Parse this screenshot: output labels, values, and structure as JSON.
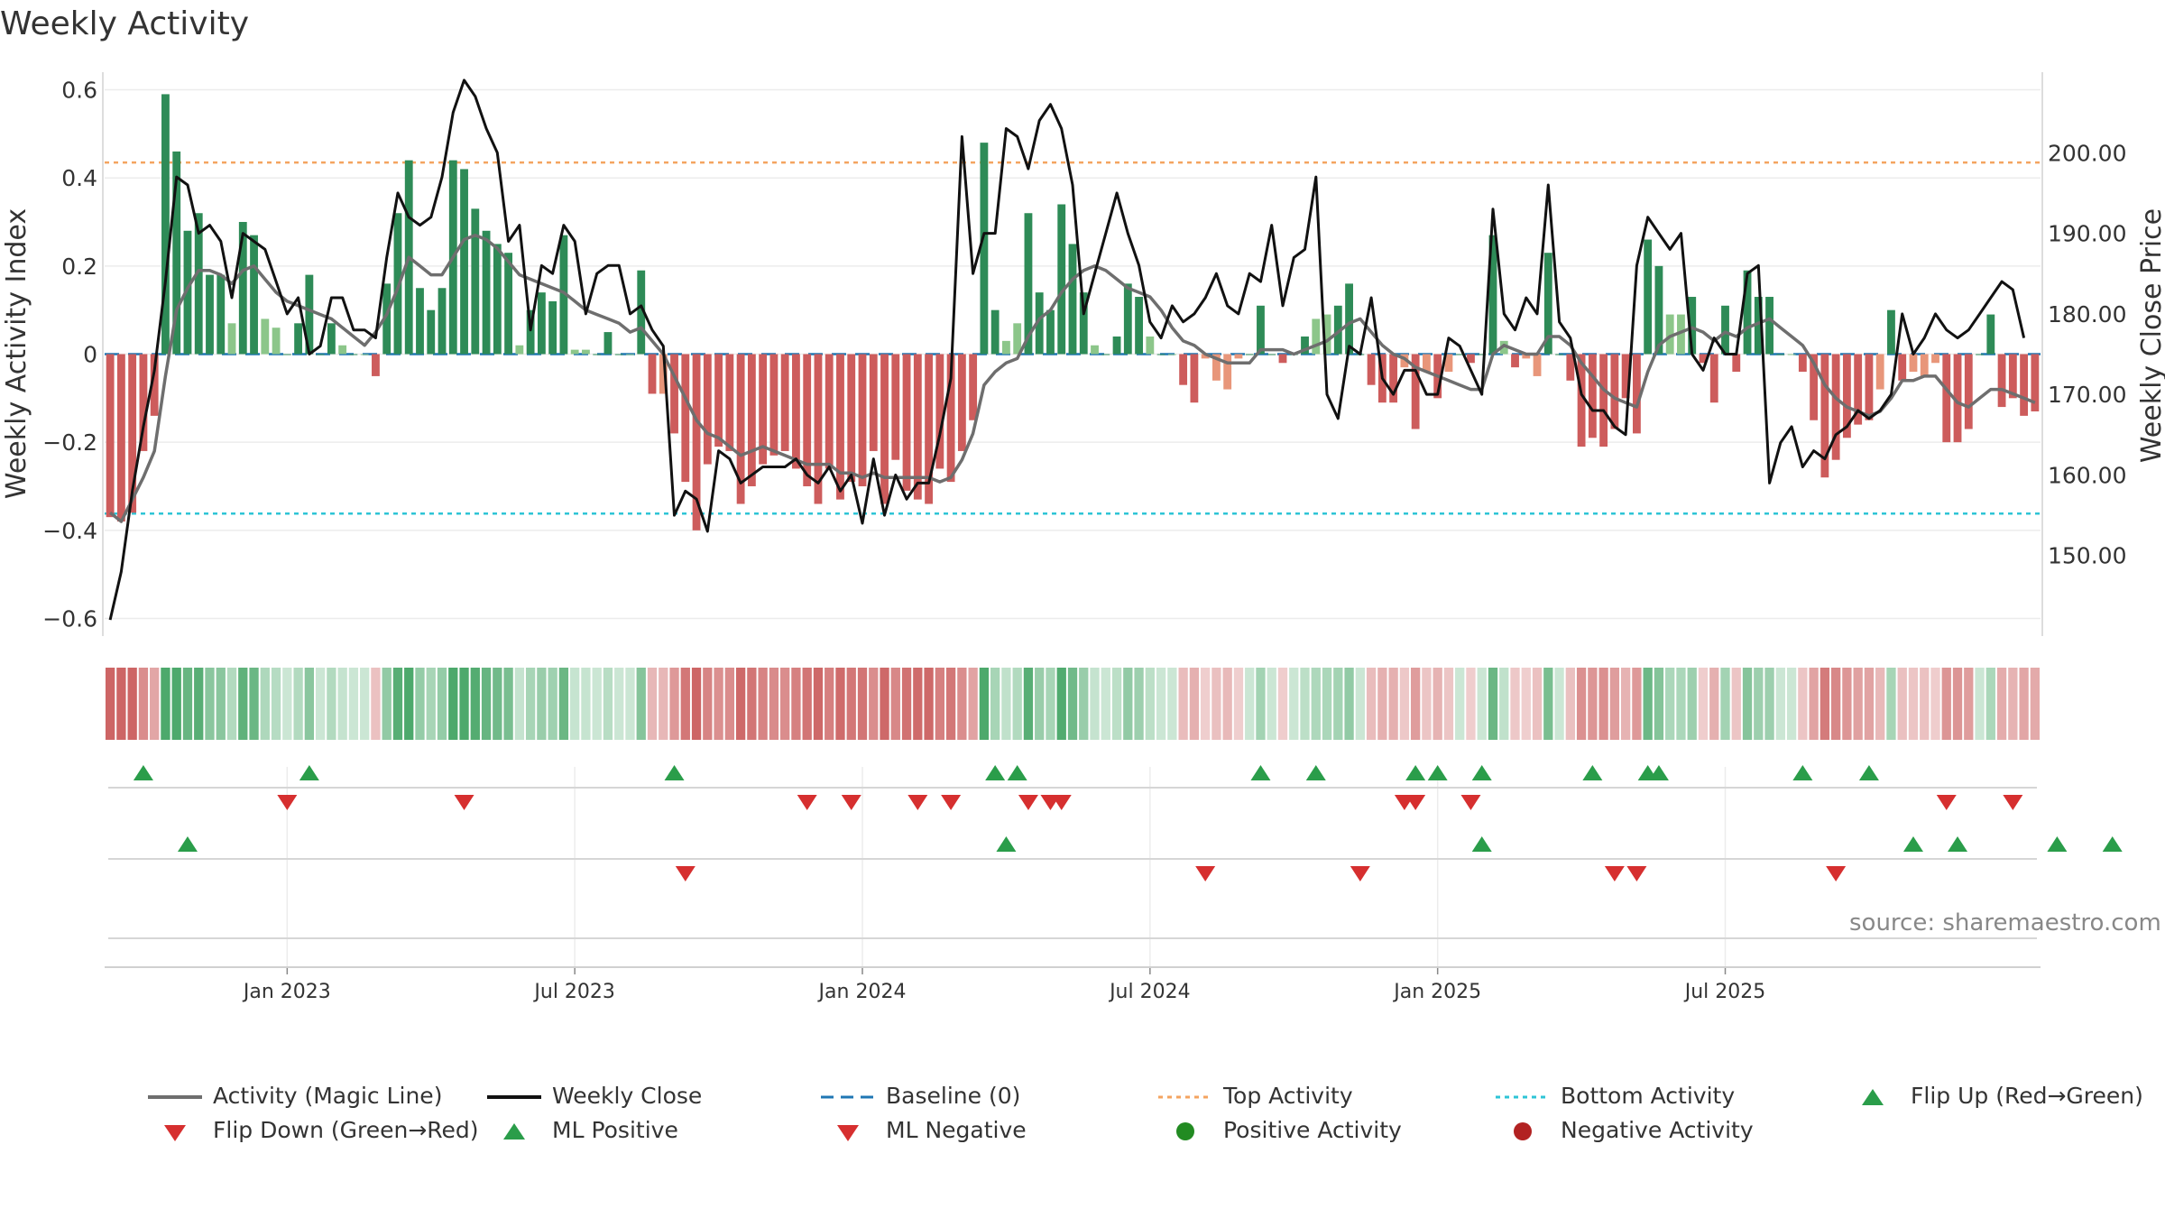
{
  "chart_data": {
    "type": "bar+line",
    "title": "Weekly Activity",
    "ylabel_left": "Weekly Activity Index",
    "ylabel_right": "Weekly Close Price",
    "ylim_left": [
      -0.64,
      0.64
    ],
    "ylim_right": [
      140,
      210
    ],
    "y_ticks_left": [
      {
        "v": 0.6,
        "label": "0.6"
      },
      {
        "v": 0.4,
        "label": "0.4"
      },
      {
        "v": 0.2,
        "label": "0.2"
      },
      {
        "v": 0,
        "label": "0"
      },
      {
        "v": -0.2,
        "label": "−0.2"
      },
      {
        "v": -0.4,
        "label": "−0.4"
      },
      {
        "v": -0.6,
        "label": "−0.6"
      }
    ],
    "y_ticks_right": [
      {
        "v": 200,
        "label": "200.00"
      },
      {
        "v": 190,
        "label": "190.00"
      },
      {
        "v": 180,
        "label": "180.00"
      },
      {
        "v": 170,
        "label": "170.00"
      },
      {
        "v": 160,
        "label": "160.00"
      },
      {
        "v": 150,
        "label": "150.00"
      }
    ],
    "x_ticks": [
      {
        "week": 16,
        "label": "Jan 2023"
      },
      {
        "week": 42,
        "label": "Jul 2023"
      },
      {
        "week": 68,
        "label": "Jan 2024"
      },
      {
        "week": 94,
        "label": "Jul 2024"
      },
      {
        "week": 120,
        "label": "Jan 2025"
      },
      {
        "week": 146,
        "label": "Jul 2025"
      }
    ],
    "top_activity": 0.435,
    "bottom_activity": -0.362,
    "baseline": 0,
    "activity": [
      -0.37,
      -0.38,
      -0.36,
      -0.22,
      -0.14,
      0.59,
      0.46,
      0.28,
      0.32,
      0.18,
      0.18,
      0.07,
      0.3,
      0.27,
      0.08,
      0.06,
      0.0,
      0.07,
      0.18,
      0.0,
      0.07,
      0.02,
      0.0,
      0.0,
      -0.05,
      0.16,
      0.32,
      0.44,
      0.15,
      0.1,
      0.15,
      0.44,
      0.42,
      0.33,
      0.28,
      0.25,
      0.23,
      0.02,
      0.1,
      0.14,
      0.12,
      0.27,
      0.01,
      0.01,
      0.0,
      0.05,
      0.0,
      0.0,
      0.19,
      -0.09,
      -0.09,
      -0.18,
      -0.29,
      -0.4,
      -0.25,
      -0.21,
      -0.22,
      -0.34,
      -0.3,
      -0.25,
      -0.23,
      -0.22,
      -0.26,
      -0.3,
      -0.34,
      -0.26,
      -0.33,
      -0.29,
      -0.3,
      -0.22,
      -0.34,
      -0.24,
      -0.31,
      -0.33,
      -0.34,
      -0.26,
      -0.29,
      -0.22,
      -0.15,
      0.48,
      0.1,
      0.03,
      0.07,
      0.32,
      0.14,
      0.1,
      0.34,
      0.25,
      0.14,
      0.02,
      0.0,
      0.04,
      0.16,
      0.13,
      0.04,
      0.0,
      0.0,
      -0.07,
      -0.11,
      -0.01,
      -0.06,
      -0.08,
      -0.01,
      0.0,
      0.11,
      0.0,
      -0.02,
      0.0,
      0.04,
      0.08,
      0.09,
      0.11,
      0.16,
      0.0,
      -0.07,
      -0.11,
      -0.11,
      -0.03,
      -0.17,
      -0.04,
      -0.1,
      -0.04,
      0.0,
      -0.02,
      0.0,
      0.27,
      0.03,
      -0.03,
      -0.01,
      -0.05,
      0.23,
      0.0,
      -0.06,
      -0.21,
      -0.19,
      -0.21,
      -0.17,
      -0.1,
      -0.18,
      0.26,
      0.2,
      0.09,
      0.09,
      0.13,
      -0.02,
      -0.11,
      0.11,
      -0.04,
      0.19,
      0.13,
      0.13,
      0.0,
      0.0,
      -0.04,
      -0.15,
      -0.28,
      -0.24,
      -0.19,
      -0.16,
      -0.15,
      -0.08,
      0.1,
      -0.06,
      -0.04,
      -0.05,
      -0.02,
      -0.2,
      -0.2,
      -0.17,
      0.0,
      0.09,
      -0.12,
      -0.1,
      -0.14,
      -0.13
    ],
    "magic_line": [
      -0.36,
      -0.38,
      -0.33,
      -0.28,
      -0.22,
      -0.05,
      0.1,
      0.15,
      0.19,
      0.19,
      0.18,
      0.16,
      0.19,
      0.2,
      0.17,
      0.14,
      0.12,
      0.11,
      0.1,
      0.09,
      0.08,
      0.06,
      0.04,
      0.02,
      0.05,
      0.09,
      0.15,
      0.22,
      0.2,
      0.18,
      0.18,
      0.22,
      0.26,
      0.27,
      0.26,
      0.24,
      0.21,
      0.18,
      0.17,
      0.16,
      0.15,
      0.14,
      0.12,
      0.1,
      0.09,
      0.08,
      0.07,
      0.05,
      0.06,
      0.03,
      0.0,
      -0.05,
      -0.1,
      -0.15,
      -0.18,
      -0.19,
      -0.21,
      -0.23,
      -0.22,
      -0.21,
      -0.22,
      -0.23,
      -0.24,
      -0.25,
      -0.25,
      -0.25,
      -0.27,
      -0.27,
      -0.28,
      -0.27,
      -0.28,
      -0.28,
      -0.28,
      -0.28,
      -0.28,
      -0.29,
      -0.28,
      -0.24,
      -0.18,
      -0.07,
      -0.04,
      -0.02,
      -0.01,
      0.04,
      0.08,
      0.1,
      0.14,
      0.17,
      0.19,
      0.2,
      0.19,
      0.17,
      0.15,
      0.14,
      0.13,
      0.1,
      0.06,
      0.03,
      0.02,
      0.0,
      -0.01,
      -0.02,
      -0.02,
      -0.02,
      0.01,
      0.01,
      0.01,
      0.0,
      0.01,
      0.02,
      0.03,
      0.05,
      0.07,
      0.08,
      0.05,
      0.02,
      0.0,
      -0.01,
      -0.03,
      -0.04,
      -0.05,
      -0.06,
      -0.07,
      -0.08,
      -0.08,
      0.0,
      0.02,
      0.01,
      0.0,
      0.0,
      0.04,
      0.04,
      0.02,
      -0.02,
      -0.05,
      -0.08,
      -0.1,
      -0.11,
      -0.12,
      -0.04,
      0.02,
      0.04,
      0.05,
      0.06,
      0.05,
      0.03,
      0.05,
      0.04,
      0.06,
      0.07,
      0.08,
      0.06,
      0.04,
      0.02,
      -0.02,
      -0.07,
      -0.1,
      -0.12,
      -0.13,
      -0.14,
      -0.13,
      -0.1,
      -0.06,
      -0.06,
      -0.05,
      -0.05,
      -0.08,
      -0.11,
      -0.12,
      -0.1,
      -0.08,
      -0.08,
      -0.09,
      -0.1,
      -0.11
    ],
    "weekly_close": [
      142,
      148,
      158,
      166,
      173,
      184,
      197,
      196,
      190,
      191,
      189,
      182,
      190,
      189,
      188,
      184,
      180,
      182,
      175,
      176,
      182,
      182,
      178,
      178,
      177,
      187,
      195,
      192,
      191,
      192,
      197,
      205,
      209,
      207,
      203,
      200,
      189,
      191,
      178,
      186,
      185,
      191,
      189,
      180,
      185,
      186,
      186,
      180,
      181,
      178,
      176,
      155,
      158,
      157,
      153,
      163,
      162,
      159,
      160,
      161,
      161,
      161,
      162,
      160,
      159,
      161,
      158,
      160,
      154,
      162,
      155,
      160,
      157,
      159,
      159,
      165,
      172,
      202,
      185,
      190,
      190,
      203,
      202,
      198,
      204,
      206,
      203,
      196,
      180,
      185,
      190,
      195,
      190,
      186,
      179,
      177,
      181,
      179,
      180,
      182,
      185,
      181,
      180,
      185,
      184,
      191,
      181,
      187,
      188,
      197,
      170,
      167,
      176,
      175,
      182,
      172,
      170,
      173,
      173,
      170,
      170,
      177,
      176,
      173,
      170,
      193,
      180,
      178,
      182,
      180,
      196,
      179,
      177,
      170,
      168,
      168,
      166,
      165,
      186,
      192,
      190,
      188,
      190,
      175,
      173,
      177,
      175,
      175,
      185,
      186,
      159,
      164,
      166,
      161,
      163,
      162,
      165,
      166,
      168,
      167,
      168,
      170,
      180,
      175,
      177,
      180,
      178,
      177,
      178,
      180,
      182,
      184,
      183,
      177
    ],
    "flip_up": [
      2,
      12,
      35,
      55,
      56,
      71,
      75,
      81,
      82,
      85,
      92,
      95,
      96,
      105,
      109
    ],
    "flip_down": [
      11,
      22,
      43,
      46,
      50,
      52,
      57,
      58,
      59,
      80,
      81,
      84,
      114,
      118
    ],
    "ml_positive": [
      3,
      36,
      55,
      72,
      74,
      80,
      78
    ],
    "ml_negative": [
      23,
      44,
      50,
      60,
      61,
      69
    ],
    "series_names": {
      "magic": "Activity (Magic Line)",
      "close": "Weekly Close",
      "baseline": "Baseline (0)",
      "top": "Top Activity",
      "bottom": "Bottom Activity",
      "flip_up": "Flip Up (Red→Green)",
      "flip_down": "Flip Down (Green→Red)",
      "ml_pos": "ML Positive",
      "ml_neg": "ML Negative",
      "pos_act": "Positive Activity",
      "neg_act": "Negative Activity"
    },
    "colors": {
      "pos_strong": "#2e8b57",
      "pos_light": "#8cc68a",
      "neg_strong": "#cd5c5c",
      "neg_light": "#e8967a",
      "magic": "#6e6e6e",
      "close": "#111111",
      "baseline": "#1f77b4",
      "top": "#f4a460",
      "bottom": "#2ec4d6",
      "up": "#2a9d4a",
      "down": "#d62f2f"
    }
  },
  "source_text": "source: sharemaestro.com"
}
